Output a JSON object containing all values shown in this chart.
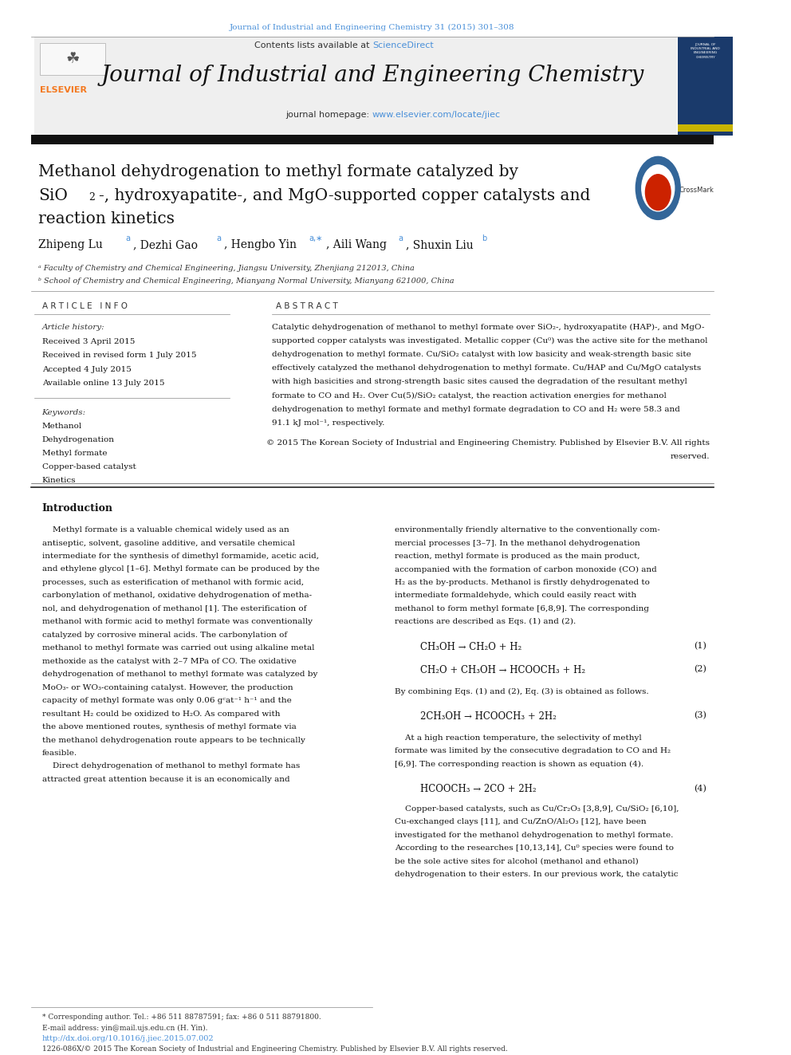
{
  "page_width": 9.92,
  "page_height": 13.23,
  "bg_color": "#ffffff",
  "top_citation": "Journal of Industrial and Engineering Chemistry 31 (2015) 301–308",
  "top_citation_color": "#4a90d9",
  "header_bg": "#efefef",
  "sciencedirect_color": "#4a90d9",
  "journal_name": "Journal of Industrial and Engineering Chemistry",
  "journal_homepage_url": "www.elsevier.com/locate/jiec",
  "journal_homepage_color": "#4a90d9",
  "article_title_line1": "Methanol dehydrogenation to methyl formate catalyzed by",
  "article_title_line3": "reaction kinetics",
  "affil_a": "ᵃ Faculty of Chemistry and Chemical Engineering, Jiangsu University, Zhenjiang 212013, China",
  "affil_b": "ᵇ School of Chemistry and Chemical Engineering, Mianyang Normal University, Mianyang 621000, China",
  "article_info_header": "A R T I C L E   I N F O",
  "article_history_header": "Article history:",
  "received1": "Received 3 April 2015",
  "received2": "Received in revised form 1 July 2015",
  "accepted": "Accepted 4 July 2015",
  "available": "Available online 13 July 2015",
  "keywords_header": "Keywords:",
  "keywords": [
    "Methanol",
    "Dehydrogenation",
    "Methyl formate",
    "Copper-based catalyst",
    "Kinetics"
  ],
  "abstract_header": "A B S T R A C T",
  "footer_note": "* Corresponding author. Tel.: +86 511 88787591; fax: +86 0 511 88791800.",
  "footer_email": "E-mail address: yin@mail.ujs.edu.cn (H. Yin).",
  "footer_doi": "http://dx.doi.org/10.1016/j.jiec.2015.07.002",
  "footer_doi_color": "#4a90d9",
  "footer_copyright": "1226-086X/© 2015 The Korean Society of Industrial and Engineering Chemistry. Published by Elsevier B.V. All rights reserved.",
  "elsevier_orange": "#f47920",
  "crossmark_red": "#cc2200",
  "crossmark_blue": "#336699",
  "ref_color": "#4a90d9"
}
